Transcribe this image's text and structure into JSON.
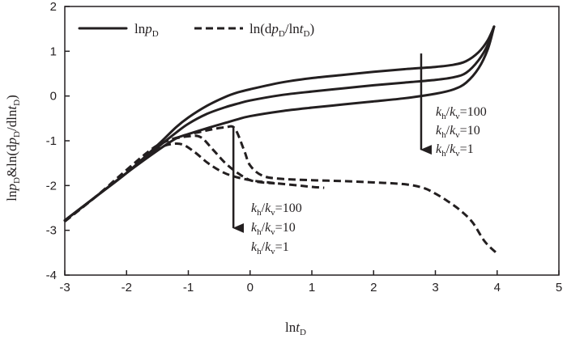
{
  "chart_data": {
    "type": "line",
    "xlabel": "lnt_D",
    "ylabel": "lnp_D&ln(dp_D/dlnt_D)",
    "xlim": [
      -3,
      5
    ],
    "ylim": [
      -4,
      2
    ],
    "xticks": [
      -3,
      -2,
      -1,
      0,
      1,
      2,
      3,
      4,
      5
    ],
    "yticks": [
      -4,
      -3,
      -2,
      -1,
      0,
      1,
      2
    ],
    "xtick_labels": [
      "-3",
      "-2",
      "-1",
      "0",
      "1",
      "2",
      "3",
      "4",
      "5"
    ],
    "ytick_labels": [
      "-4",
      "-3",
      "-2",
      "-1",
      "0",
      "1",
      "2"
    ],
    "grid": false,
    "legend_position": "top-left",
    "legend": [
      {
        "label": "lnp_D",
        "style": "solid"
      },
      {
        "label": "ln(dp_D/lnt_D)",
        "style": "dashed"
      }
    ],
    "series": [
      {
        "style": "solid",
        "group": "pressure",
        "x": [
          -3.0,
          -2.5,
          -2.0,
          -1.5,
          -1.2,
          -1.0,
          -0.7,
          -0.4,
          -0.2,
          0.0,
          0.5,
          1.0,
          1.5,
          2.0,
          2.5,
          3.0,
          3.3,
          3.5,
          3.7,
          3.85,
          3.95
        ],
        "y": [
          -2.78,
          -2.25,
          -1.72,
          -1.22,
          -0.95,
          -0.85,
          -0.72,
          -0.6,
          -0.52,
          -0.45,
          -0.34,
          -0.26,
          -0.19,
          -0.12,
          -0.05,
          0.05,
          0.15,
          0.3,
          0.62,
          1.05,
          1.55
        ]
      },
      {
        "style": "solid",
        "group": "pressure",
        "x": [
          -3.0,
          -2.5,
          -2.0,
          -1.5,
          -1.2,
          -1.0,
          -0.7,
          -0.4,
          -0.2,
          0.0,
          0.5,
          1.0,
          1.5,
          2.0,
          2.5,
          3.0,
          3.3,
          3.5,
          3.7,
          3.85,
          3.95
        ],
        "y": [
          -2.78,
          -2.25,
          -1.72,
          -1.15,
          -0.82,
          -0.62,
          -0.4,
          -0.25,
          -0.17,
          -0.1,
          0.02,
          0.1,
          0.17,
          0.24,
          0.3,
          0.36,
          0.42,
          0.52,
          0.8,
          1.15,
          1.55
        ]
      },
      {
        "style": "solid",
        "group": "pressure",
        "x": [
          -3.0,
          -2.5,
          -2.0,
          -1.5,
          -1.2,
          -1.0,
          -0.7,
          -0.4,
          -0.2,
          0.0,
          0.5,
          1.0,
          1.5,
          2.0,
          2.5,
          3.0,
          3.3,
          3.5,
          3.7,
          3.85,
          3.95
        ],
        "y": [
          -2.78,
          -2.25,
          -1.72,
          -1.1,
          -0.7,
          -0.48,
          -0.22,
          -0.02,
          0.08,
          0.15,
          0.3,
          0.4,
          0.47,
          0.54,
          0.6,
          0.65,
          0.7,
          0.78,
          0.98,
          1.25,
          1.55
        ]
      },
      {
        "style": "dashed",
        "group": "derivative",
        "x": [
          -3.0,
          -2.5,
          -2.0,
          -1.7,
          -1.5,
          -1.3,
          -1.0,
          -0.8,
          -0.6,
          -0.4,
          -0.25,
          -0.1,
          0.0,
          0.2,
          0.5,
          1.0,
          1.5,
          2.0,
          2.5,
          2.8,
          3.0,
          3.2,
          3.4,
          3.6,
          3.8,
          4.0
        ],
        "y": [
          -2.8,
          -2.25,
          -1.65,
          -1.3,
          -1.1,
          -0.98,
          -0.86,
          -0.8,
          -0.74,
          -0.7,
          -0.72,
          -1.2,
          -1.55,
          -1.78,
          -1.85,
          -1.88,
          -1.9,
          -1.93,
          -1.97,
          -2.05,
          -2.18,
          -2.35,
          -2.55,
          -2.82,
          -3.25,
          -3.52
        ]
      },
      {
        "style": "dashed",
        "group": "derivative",
        "x": [
          -3.0,
          -2.5,
          -2.0,
          -1.7,
          -1.5,
          -1.3,
          -1.0,
          -0.8,
          -0.6,
          -0.4,
          -0.2,
          0.0,
          0.2,
          0.4
        ],
        "y": [
          -2.8,
          -2.25,
          -1.68,
          -1.33,
          -1.12,
          -0.98,
          -0.9,
          -0.92,
          -1.2,
          -1.5,
          -1.72,
          -1.88,
          -1.93,
          -1.95
        ]
      },
      {
        "style": "dashed",
        "group": "derivative",
        "x": [
          -3.0,
          -2.5,
          -2.0,
          -1.7,
          -1.5,
          -1.3,
          -1.1,
          -0.9,
          -0.7,
          -0.5,
          -0.3,
          0.0,
          0.3,
          0.5,
          0.8,
          1.0,
          1.2
        ],
        "y": [
          -2.8,
          -2.25,
          -1.7,
          -1.36,
          -1.18,
          -1.08,
          -1.08,
          -1.25,
          -1.48,
          -1.66,
          -1.78,
          -1.88,
          -1.93,
          -1.96,
          -2.0,
          -2.03,
          -2.05
        ]
      }
    ],
    "annotations": {
      "solid_group": {
        "lines": [
          {
            "num": "k",
            "num_sub": "h",
            "slash": "/",
            "den": "k",
            "den_sub": "v",
            "value": "=100"
          },
          {
            "num": "k",
            "num_sub": "h",
            "slash": "/",
            "den": "k",
            "den_sub": "v",
            "value": "=10"
          },
          {
            "num": "k",
            "num_sub": "h",
            "slash": "/",
            "den": "k",
            "den_sub": "v",
            "value": "=1"
          }
        ],
        "arrow": {
          "x": 2.77,
          "y_from": 0.95,
          "y_to": -1.2
        }
      },
      "dashed_group": {
        "lines": [
          {
            "num": "k",
            "num_sub": "h",
            "slash": "/",
            "den": "k",
            "den_sub": "v",
            "value": "=100"
          },
          {
            "num": "k",
            "num_sub": "h",
            "slash": "/",
            "den": "k",
            "den_sub": "v",
            "value": "=10"
          },
          {
            "num": "k",
            "num_sub": "h",
            "slash": "/",
            "den": "k",
            "den_sub": "v",
            "value": "=1"
          }
        ],
        "arrow": {
          "x": -0.27,
          "y_from": -0.68,
          "y_to": -2.95
        }
      }
    }
  }
}
